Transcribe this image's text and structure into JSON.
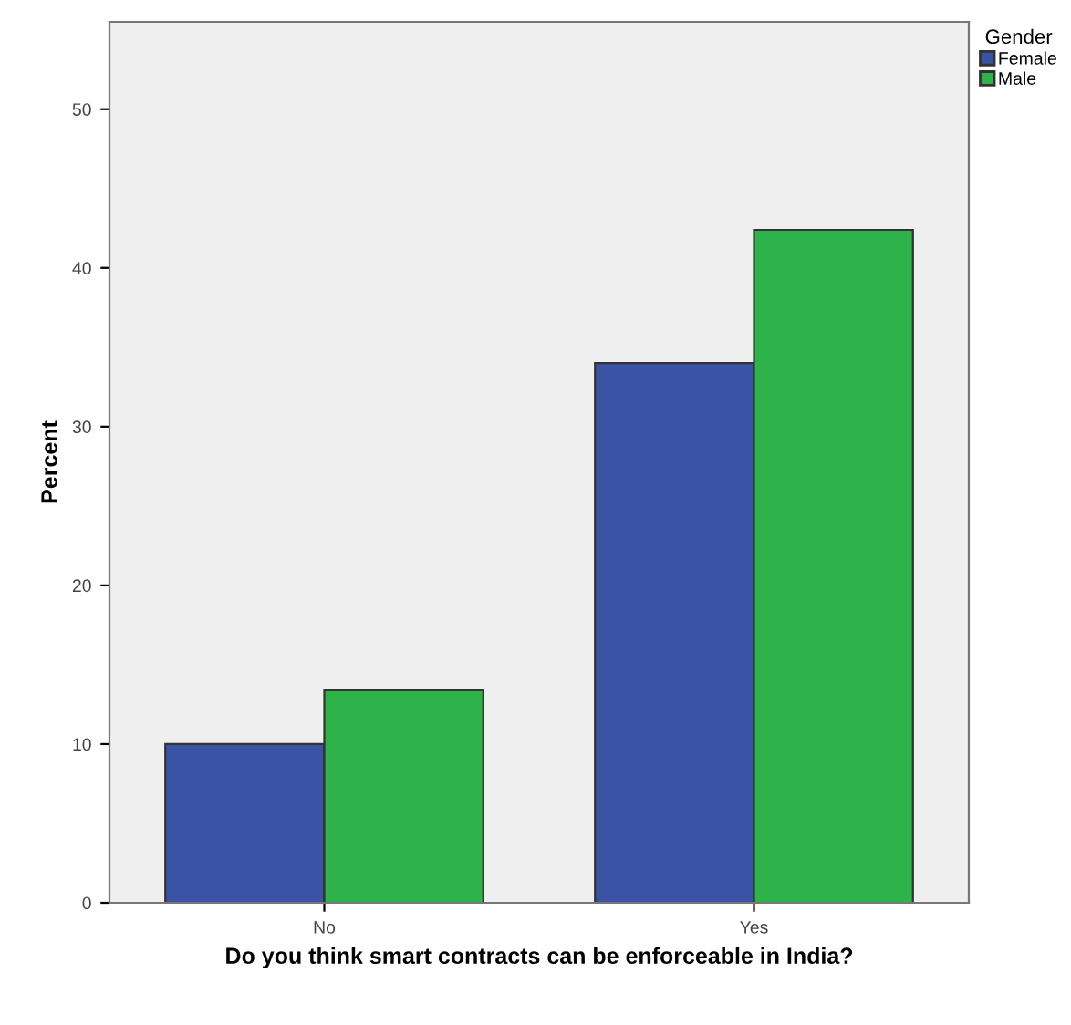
{
  "chart_data": {
    "type": "bar",
    "xlabel": "Do you think smart contracts can be enforceable in India?",
    "ylabel": "Percent",
    "legend_title": "Gender",
    "categories": [
      "No",
      "Yes"
    ],
    "series": [
      {
        "name": "Female",
        "color": "#3a53a4",
        "values": [
          10,
          34
        ]
      },
      {
        "name": "Male",
        "color": "#2eb34a",
        "values": [
          13.4,
          42.4
        ]
      }
    ],
    "ylim": [
      0,
      55.5
    ],
    "yticks": [
      0,
      10,
      20,
      30,
      40,
      50
    ],
    "grid": false,
    "legend": "top right"
  }
}
